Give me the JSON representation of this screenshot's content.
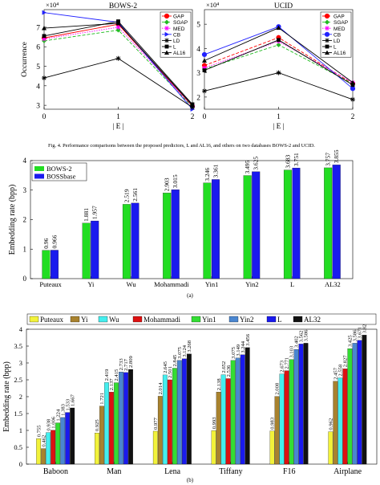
{
  "figure4_caption": "Fig. 4. Performance comparisons between the proposed predictors, L and AL16, and others on two databases BOWS-2 and UCID.",
  "subfig_a_label": "(a)",
  "subfig_b_label": "(b)",
  "chart_data": [
    {
      "type": "line",
      "title": "BOWS-2",
      "xlabel": "| E |",
      "ylabel": "Occurrence",
      "exponent_label": "×10⁴",
      "x": [
        0,
        1,
        2
      ],
      "xticks": [
        "0",
        "1",
        "2"
      ],
      "yticks": [
        "3",
        "4",
        "5",
        "6",
        "7"
      ],
      "ylim": [
        2.8,
        7.9
      ],
      "grid": false,
      "legend_position": "top-right",
      "series": [
        {
          "name": "GAP",
          "values": [
            6.45,
            7.15,
            2.95
          ],
          "color": "#ff0000",
          "marker": "circle",
          "dash": ""
        },
        {
          "name": "SGAP",
          "values": [
            6.3,
            6.85,
            2.92
          ],
          "color": "#22bb22",
          "marker": "diamond",
          "dash": "4,2"
        },
        {
          "name": "MED",
          "values": [
            6.4,
            7.0,
            2.97
          ],
          "color": "#ff00ff",
          "marker": "star",
          "dash": "1.5,1.5"
        },
        {
          "name": "CB",
          "values": [
            7.75,
            7.25,
            2.8
          ],
          "color": "#2222ff",
          "marker": "triangle-right",
          "dash": ""
        },
        {
          "name": "LD",
          "values": [
            4.4,
            5.4,
            2.9
          ],
          "color": "#000000",
          "marker": "star",
          "dash": ""
        },
        {
          "name": "L",
          "values": [
            6.55,
            7.3,
            3.05
          ],
          "color": "#000000",
          "marker": "square",
          "dash": ""
        },
        {
          "name": "AL16",
          "values": [
            6.95,
            7.2,
            3.0
          ],
          "color": "#000000",
          "marker": "triangle-up",
          "dash": ""
        }
      ]
    },
    {
      "type": "line",
      "title": "UCID",
      "xlabel": "| E |",
      "ylabel": "",
      "exponent_label": "×10⁴",
      "x": [
        0,
        1,
        2
      ],
      "xticks": [
        "0",
        "1",
        "2"
      ],
      "yticks": [
        "2",
        "3",
        "4",
        "5"
      ],
      "ylim": [
        1.5,
        5.6
      ],
      "grid": false,
      "legend_position": "top-right",
      "series": [
        {
          "name": "GAP",
          "values": [
            3.3,
            4.45,
            2.55
          ],
          "color": "#ff0000",
          "marker": "circle",
          "dash": "4,2"
        },
        {
          "name": "SGAP",
          "values": [
            3.15,
            4.15,
            2.55
          ],
          "color": "#22bb22",
          "marker": "diamond",
          "dash": "4,2"
        },
        {
          "name": "MED",
          "values": [
            3.2,
            4.3,
            2.6
          ],
          "color": "#ff00ff",
          "marker": "star",
          "dash": "1.5,1.5"
        },
        {
          "name": "CB",
          "values": [
            3.75,
            4.9,
            2.35
          ],
          "color": "#2222ff",
          "marker": "circle",
          "dash": ""
        },
        {
          "name": "LD",
          "values": [
            2.25,
            3.0,
            1.9
          ],
          "color": "#000000",
          "marker": "star",
          "dash": ""
        },
        {
          "name": "L",
          "values": [
            3.1,
            4.35,
            2.5
          ],
          "color": "#000000",
          "marker": "square",
          "dash": ""
        },
        {
          "name": "AL16",
          "values": [
            3.5,
            4.85,
            2.6
          ],
          "color": "#000000",
          "marker": "triangle-up",
          "dash": ""
        }
      ]
    },
    {
      "type": "bar",
      "ylabel": "Embedding rate (bpp)",
      "ylim": [
        0,
        4
      ],
      "yticks": [
        "0",
        "1",
        "2",
        "3",
        "4"
      ],
      "categories": [
        "Puteaux",
        "Yi",
        "Wu",
        "Mohammadi",
        "Yin1",
        "Yin2",
        "L",
        "AL32"
      ],
      "legend_position": "top-left",
      "series": [
        {
          "name": "BOWS-2",
          "color": "#22dd22",
          "values": [
            0.96,
            1.881,
            2.519,
            2.903,
            3.246,
            3.495,
            3.683,
            3.757
          ],
          "labels": [
            "0.96",
            "1.881",
            "2.519",
            "2.903",
            "3.246",
            "3.495",
            "3.683",
            "3.757"
          ]
        },
        {
          "name": "BOSSbase",
          "color": "#1a1aee",
          "values": [
            0.966,
            1.957,
            2.561,
            3.015,
            3.361,
            3.625,
            3.751,
            3.855
          ],
          "labels": [
            "0.966",
            "1.957",
            "2.561",
            "3.015",
            "3.361",
            "3.625",
            "3.751",
            "3.855"
          ]
        }
      ]
    },
    {
      "type": "bar",
      "ylabel": "Embedding rate (bpp)",
      "ylim": [
        0,
        4
      ],
      "yticks": [
        "0",
        "0.5",
        "1",
        "1.5",
        "2",
        "2.5",
        "3",
        "3.5",
        "4"
      ],
      "categories": [
        "Baboon",
        "Man",
        "Lena",
        "Tiffany",
        "F16",
        "Airplane"
      ],
      "legend_position": "top",
      "series": [
        {
          "name": "Puteaux",
          "color": "#f2f23a",
          "values": [
            0.755,
            0.925,
            0.977,
            0.993,
            0.983,
            0.962
          ],
          "labels": [
            "0.755",
            "0.925",
            "0.977",
            "0.993",
            "0.983",
            "0.962"
          ]
        },
        {
          "name": "Yi",
          "color": "#a8822e",
          "values": [
            0.462,
            1.721,
            2.014,
            2.138,
            2.008,
            2.457
          ],
          "labels": [
            "0.462",
            "1.721",
            "2.014",
            "2.138",
            "2.008",
            "2.457"
          ]
        },
        {
          "name": "Wu",
          "color": "#44eeee",
          "values": [
            0.938,
            2.419,
            2.645,
            2.652,
            2.673,
            2.558
          ],
          "labels": [
            "0.938",
            "2.419",
            "2.645",
            "2.652",
            "2.673",
            "2.558"
          ]
        },
        {
          "name": "Mohammadi",
          "color": "#dd1111",
          "values": [
            1.006,
            2.137,
            2.501,
            2.536,
            2.771,
            2.827
          ],
          "labels": [
            "1.006",
            "2.137",
            "2.501",
            "2.536",
            "2.771",
            "2.827"
          ]
        },
        {
          "name": "Yin1",
          "color": "#33dd33",
          "values": [
            1.224,
            2.415,
            2.845,
            3.075,
            3.103,
            3.425
          ],
          "labels": [
            "1.224",
            "2.415",
            "2.845",
            "3.075",
            "3.103",
            "3.425"
          ]
        },
        {
          "name": "Yin2",
          "color": "#4a86d0",
          "values": [
            1.383,
            2.733,
            3.075,
            3.149,
            3.402,
            3.586
          ],
          "labels": [
            "1.383",
            "2.733",
            "3.075",
            "3.149",
            "3.402",
            "3.586"
          ]
        },
        {
          "name": "L",
          "color": "#1a1aee",
          "values": [
            1.533,
            2.717,
            3.124,
            3.244,
            3.562,
            3.671
          ],
          "labels": [
            "1.533",
            "2.717",
            "3.124",
            "3.244",
            "3.562",
            "3.671"
          ]
        },
        {
          "name": "AL32",
          "color": "#111111",
          "values": [
            1.667,
            2.809,
            3.268,
            3.456,
            3.586,
            3.828
          ],
          "labels": [
            "1.667",
            "2.809",
            "3.268",
            "3.456",
            "3.586",
            "3.828"
          ]
        }
      ]
    }
  ]
}
